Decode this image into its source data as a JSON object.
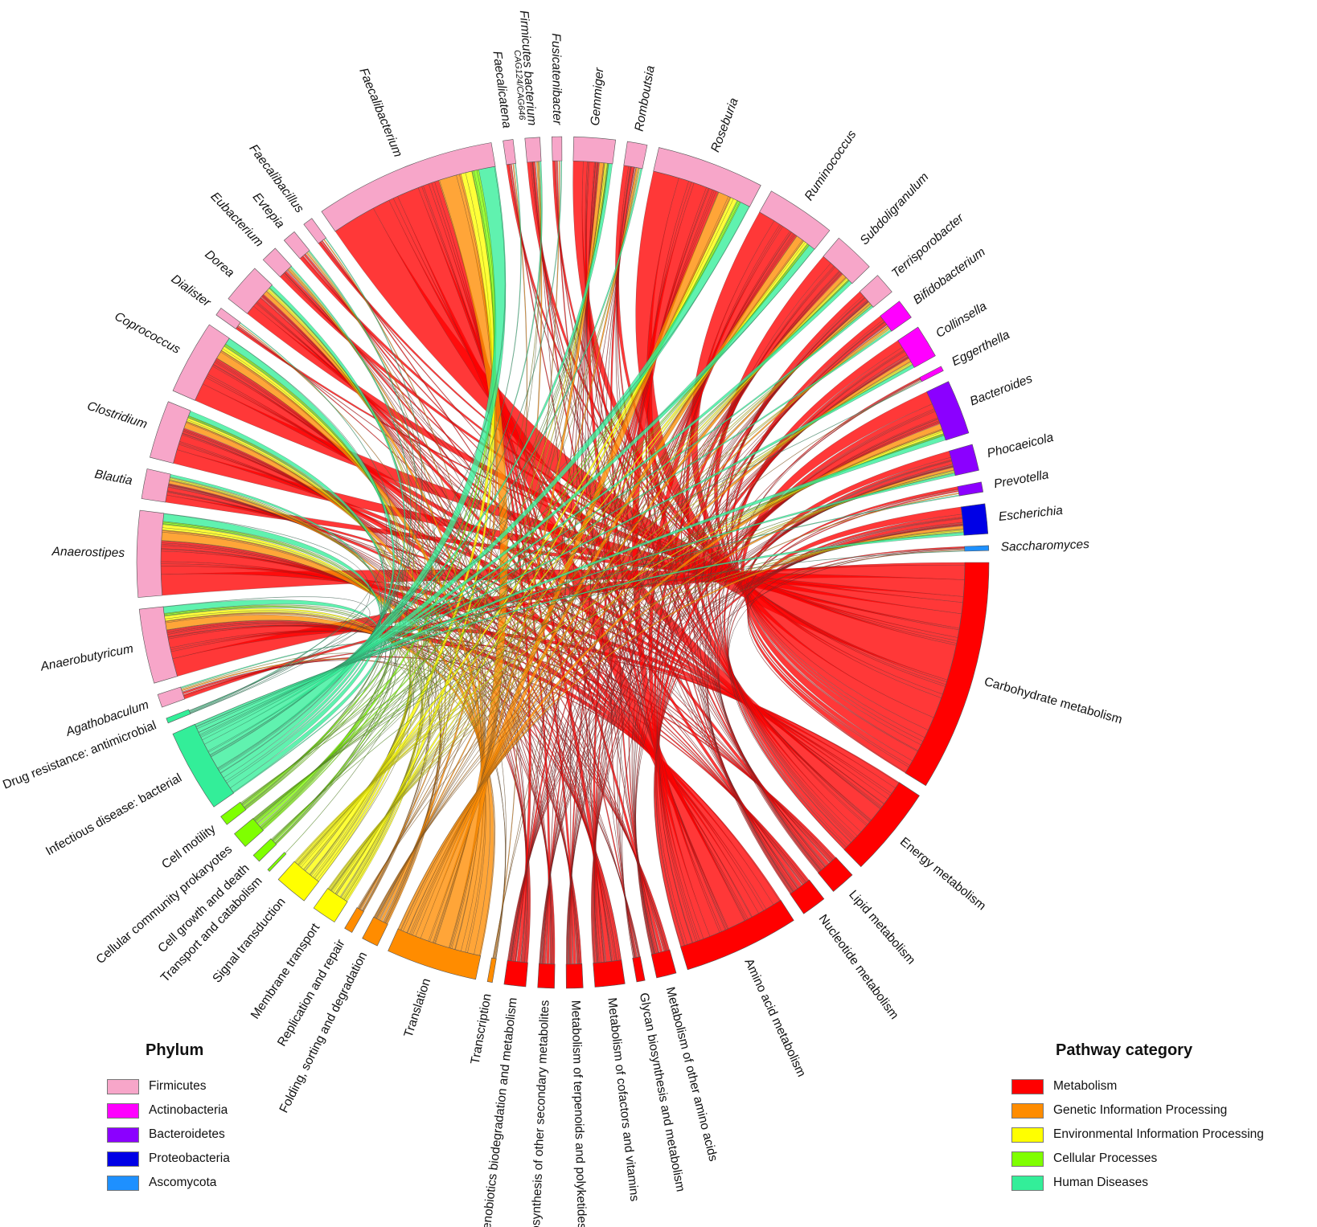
{
  "phylum_legend": {
    "title": "Phylum",
    "items": [
      {
        "label": "Firmicutes",
        "color": "#f7a6c9"
      },
      {
        "label": "Actinobacteria",
        "color": "#ff00ff"
      },
      {
        "label": "Bacteroidetes",
        "color": "#8b00ff"
      },
      {
        "label": "Proteobacteria",
        "color": "#0000e6"
      },
      {
        "label": "Ascomycota",
        "color": "#1e90ff"
      }
    ]
  },
  "pathway_legend": {
    "title": "Pathway category",
    "items": [
      {
        "label": "Metabolism",
        "color": "#ff0000"
      },
      {
        "label": "Genetic Information Processing",
        "color": "#ff8c00"
      },
      {
        "label": "Environmental Information Processing",
        "color": "#ffff00"
      },
      {
        "label": "Cellular Processes",
        "color": "#7fff00"
      },
      {
        "label": "Human Diseases",
        "color": "#33ee99"
      }
    ]
  },
  "pathways": [
    {
      "label": "Carbohydrate metabolism",
      "category": "Metabolism",
      "size": 14
    },
    {
      "label": "Energy metabolism",
      "category": "Metabolism",
      "size": 5.5
    },
    {
      "label": "Lipid metabolism",
      "category": "Metabolism",
      "size": 1.5
    },
    {
      "label": "Nucleotide metabolism",
      "category": "Metabolism",
      "size": 1.5
    },
    {
      "label": "Amino acid metabolism",
      "category": "Metabolism",
      "size": 7
    },
    {
      "label": "Metabolism of other amino acids",
      "category": "Metabolism",
      "size": 1.2
    },
    {
      "label": "Glycan biosynthesis and metabolism",
      "category": "Metabolism",
      "size": 0.5
    },
    {
      "label": "Metabolism of cofactors and vitamins",
      "category": "Metabolism",
      "size": 1.8
    },
    {
      "label": "Metabolism of terpenoids and polyketides",
      "category": "Metabolism",
      "size": 1
    },
    {
      "label": "Biosynthesis of other secondary metabolites",
      "category": "Metabolism",
      "size": 1
    },
    {
      "label": "Xenobiotics biodegradation and metabolism",
      "category": "Metabolism",
      "size": 1.3
    },
    {
      "label": "Transcription",
      "category": "Genetic Information Processing",
      "size": 0.3
    },
    {
      "label": "Translation",
      "category": "Genetic Information Processing",
      "size": 5.5
    },
    {
      "label": "Folding, sorting and degradation",
      "category": "Genetic Information Processing",
      "size": 1
    },
    {
      "label": "Replication and repair",
      "category": "Genetic Information Processing",
      "size": 0.5
    },
    {
      "label": "Membrane transport",
      "category": "Environmental Information Processing",
      "size": 1.5
    },
    {
      "label": "Signal transduction",
      "category": "Environmental Information Processing",
      "size": 2
    },
    {
      "label": "Transport and catabolism",
      "category": "Cellular Processes",
      "size": 0.15
    },
    {
      "label": "Cell growth and death",
      "category": "Cellular Processes",
      "size": 0.5
    },
    {
      "label": "Cellular community prokaryotes",
      "category": "Cellular Processes",
      "size": 1
    },
    {
      "label": "Cell motility",
      "category": "Cellular Processes",
      "size": 0.6
    },
    {
      "label": "Infectious disease: bacterial",
      "category": "Human Diseases",
      "size": 5
    },
    {
      "label": "Drug resistance: antimicrobial",
      "category": "Human Diseases",
      "size": 0.3
    }
  ],
  "genera": [
    {
      "label": "Agathobaculum",
      "phylum": "Firmicutes",
      "size": 0.8
    },
    {
      "label": "Anaerobutyricum",
      "phylum": "Firmicutes",
      "size": 4.5
    },
    {
      "label": "Anaerostipes",
      "phylum": "Firmicutes",
      "size": 5.2
    },
    {
      "label": "Blautia",
      "phylum": "Firmicutes",
      "size": 1.8
    },
    {
      "label": "Clostridium",
      "phylum": "Firmicutes",
      "size": 3.5
    },
    {
      "label": "Coprococcus",
      "phylum": "Firmicutes",
      "size": 4.5
    },
    {
      "label": "Dialister",
      "phylum": "Firmicutes",
      "size": 0.5
    },
    {
      "label": "Dorea",
      "phylum": "Firmicutes",
      "size": 2.4
    },
    {
      "label": "Eubacterium",
      "phylum": "Firmicutes",
      "size": 1
    },
    {
      "label": "Evtepia",
      "phylum": "Firmicutes",
      "size": 0.8
    },
    {
      "label": "Faecalibacillus",
      "phylum": "Firmicutes",
      "size": 0.6
    },
    {
      "label": "Faecalibacterium",
      "phylum": "Firmicutes",
      "size": 11
    },
    {
      "label": "Faecalicatena",
      "phylum": "Firmicutes",
      "size": 0.6
    },
    {
      "label": "Firmicutes bacterium",
      "sublabel": "CAG124/CAG646",
      "phylum": "Firmicutes",
      "size": 0.9
    },
    {
      "label": "Fusicatenibacter",
      "phylum": "Firmicutes",
      "size": 0.6
    },
    {
      "label": "Gemmiger",
      "phylum": "Firmicutes",
      "size": 2.5
    },
    {
      "label": "Romboutsia",
      "phylum": "Firmicutes",
      "size": 1.2
    },
    {
      "label": "Roseburia",
      "phylum": "Firmicutes",
      "size": 6.5
    },
    {
      "label": "Ruminococcus",
      "phylum": "Firmicutes",
      "size": 4.2
    },
    {
      "label": "Subdoligranulum",
      "phylum": "Firmicutes",
      "size": 2.5
    },
    {
      "label": "Terrisporobacter",
      "phylum": "Firmicutes",
      "size": 1.3
    },
    {
      "label": "Bifidobacterium",
      "phylum": "Actinobacteria",
      "size": 1.2
    },
    {
      "label": "Collinsella",
      "phylum": "Actinobacteria",
      "size": 2
    },
    {
      "label": "Eggerthella",
      "phylum": "Actinobacteria",
      "size": 0.3
    },
    {
      "label": "Bacteroides",
      "phylum": "Bacteroidetes",
      "size": 3.3
    },
    {
      "label": "Phocaeicola",
      "phylum": "Bacteroidetes",
      "size": 1.6
    },
    {
      "label": "Prevotella",
      "phylum": "Bacteroidetes",
      "size": 0.6
    },
    {
      "label": "Escherichia",
      "phylum": "Proteobacteria",
      "size": 1.8
    },
    {
      "label": "Saccharomyces",
      "phylum": "Ascomycota",
      "size": 0.3
    }
  ]
}
